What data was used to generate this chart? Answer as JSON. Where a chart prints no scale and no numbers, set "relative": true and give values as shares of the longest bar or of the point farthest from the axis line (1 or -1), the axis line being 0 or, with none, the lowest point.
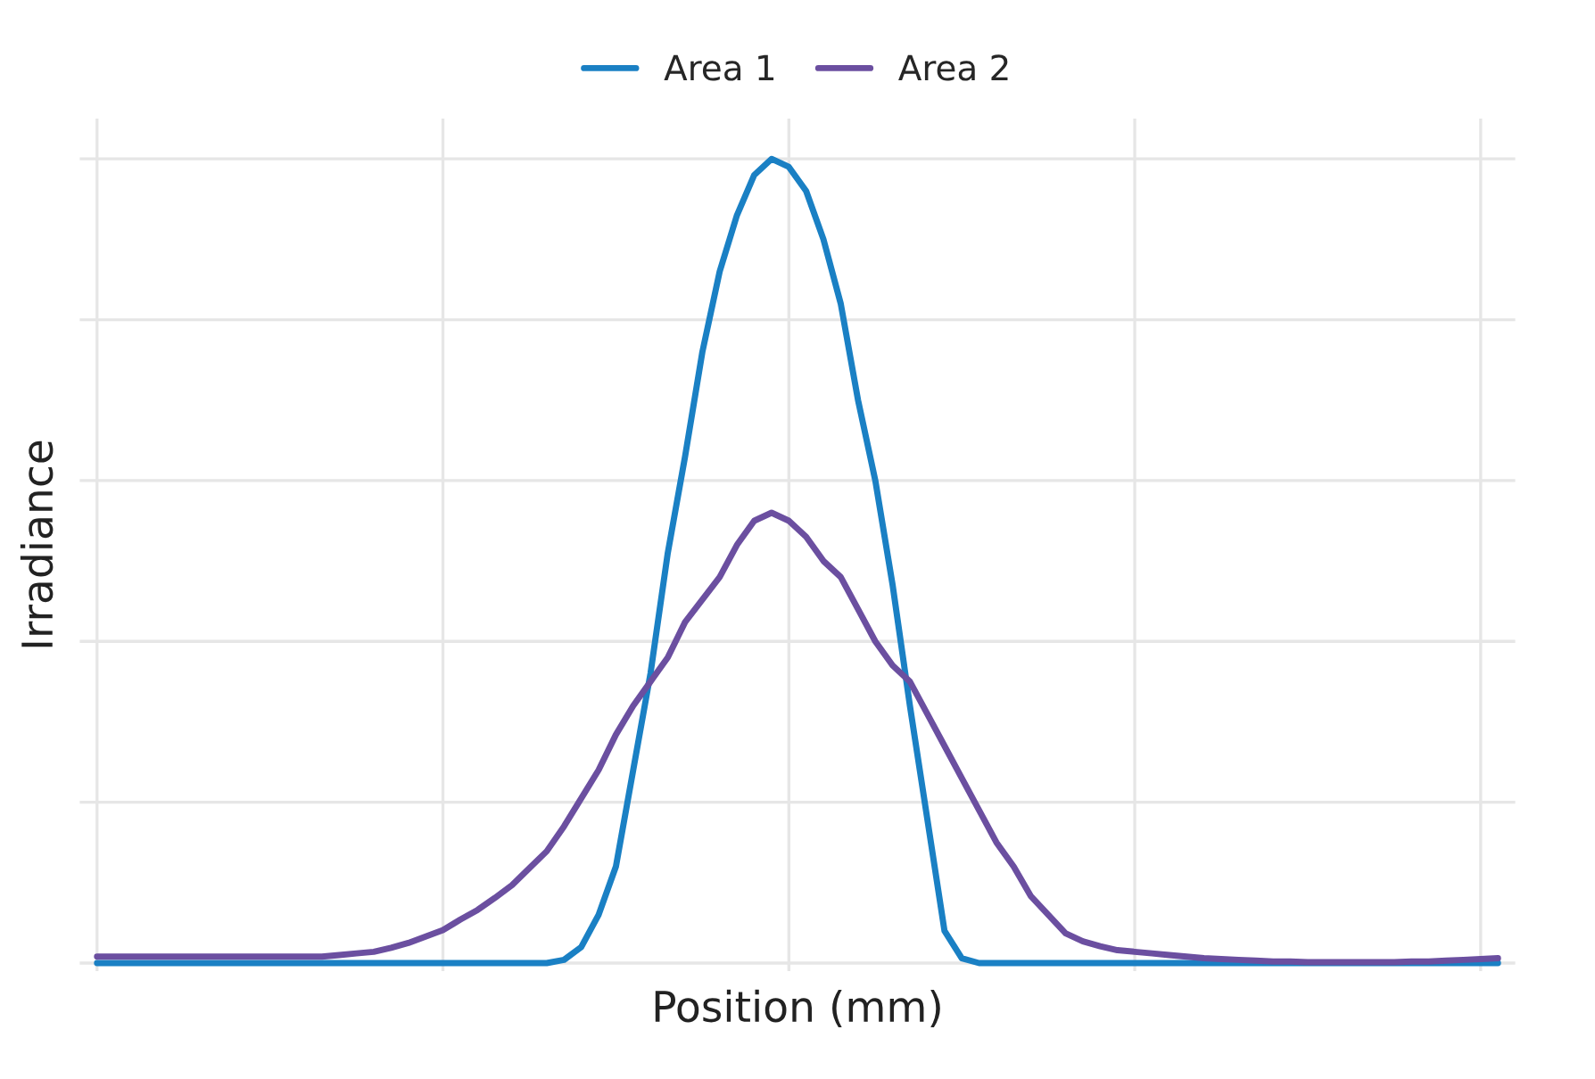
{
  "chart_data": {
    "type": "line",
    "xlabel": "Position (mm)",
    "ylabel": "Irradiance",
    "relative": true,
    "grid": true,
    "legend": "top",
    "marker": "none",
    "line_style": "solid",
    "categories": [
      null,
      null,
      null,
      null,
      null,
      null,
      null,
      null,
      null,
      null,
      null,
      null,
      null,
      null,
      null,
      null,
      null,
      null,
      null,
      null,
      null,
      null,
      null,
      null,
      null,
      null,
      null,
      null,
      null,
      null,
      null,
      null,
      null,
      null,
      null,
      null,
      null,
      null,
      null,
      null,
      null,
      null,
      null,
      null,
      null,
      null,
      null,
      null,
      null,
      null,
      null,
      null,
      null,
      null,
      null,
      null,
      null,
      null,
      null,
      null,
      null,
      null,
      null,
      null,
      null,
      null,
      null,
      null,
      null,
      null,
      null,
      null,
      null,
      null,
      null,
      null,
      null,
      null,
      null,
      null,
      null,
      null
    ],
    "series": [
      {
        "name": "Area 1",
        "color": "#1a80c4",
        "values": [
          0,
          0,
          0,
          0,
          0,
          0,
          0,
          0,
          0,
          0,
          0,
          0,
          0,
          0,
          0,
          0,
          0,
          0,
          0,
          0,
          0,
          0,
          0,
          0,
          0,
          0,
          0,
          0.004,
          0.02,
          0.06,
          0.12,
          0.24,
          0.36,
          0.51,
          0.63,
          0.76,
          0.86,
          0.93,
          0.98,
          1.0,
          0.99,
          0.96,
          0.9,
          0.82,
          0.7,
          0.6,
          0.47,
          0.32,
          0.18,
          0.04,
          0.006,
          0,
          0,
          0,
          0,
          0,
          0,
          0,
          0,
          0,
          0,
          0,
          0,
          0,
          0,
          0,
          0,
          0,
          0,
          0,
          0,
          0,
          0,
          0,
          0,
          0,
          0,
          0,
          0,
          0,
          0,
          0
        ]
      },
      {
        "name": "Area 2",
        "color": "#6b4fa0",
        "values": [
          0.008,
          0.008,
          0.008,
          0.008,
          0.008,
          0.008,
          0.008,
          0.008,
          0.008,
          0.008,
          0.008,
          0.008,
          0.008,
          0.008,
          0.01,
          0.012,
          0.014,
          0.019,
          0.025,
          0.033,
          0.041,
          0.054,
          0.066,
          0.081,
          0.097,
          0.118,
          0.139,
          0.17,
          0.205,
          0.24,
          0.284,
          0.32,
          0.35,
          0.38,
          0.424,
          0.452,
          0.48,
          0.52,
          0.55,
          0.56,
          0.55,
          0.53,
          0.5,
          0.48,
          0.44,
          0.4,
          0.37,
          0.35,
          0.31,
          0.27,
          0.23,
          0.19,
          0.15,
          0.12,
          0.083,
          0.06,
          0.037,
          0.027,
          0.021,
          0.016,
          0.014,
          0.012,
          0.01,
          0.008,
          0.006,
          0.005,
          0.004,
          0.003,
          0.002,
          0.002,
          0.001,
          0.001,
          0.001,
          0.001,
          0.001,
          0.001,
          0.002,
          0.002,
          0.003,
          0.004,
          0.005,
          0.006
        ]
      }
    ]
  }
}
